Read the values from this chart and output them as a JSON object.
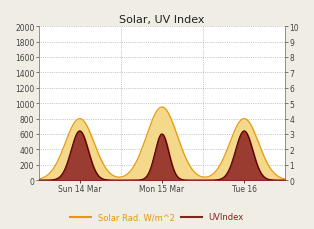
{
  "title": "Solar, UV Index",
  "ylim_left": [
    0,
    2000
  ],
  "ylim_right": [
    0,
    10.0
  ],
  "yticks_left": [
    0,
    200,
    400,
    600,
    800,
    1000,
    1200,
    1400,
    1600,
    1800,
    2000
  ],
  "yticks_right": [
    0.0,
    1.0,
    2.0,
    3.0,
    4.0,
    5.0,
    6.0,
    7.0,
    8.0,
    9.0,
    10.0
  ],
  "xtick_labels": [
    "Sun 14 Mar",
    "Mon 15 Mar",
    "Tue 16"
  ],
  "xtick_positions": [
    12,
    36,
    60
  ],
  "vline_positions": [
    24,
    48
  ],
  "solar_color": "#e8960a",
  "solar_fill": "#f5d98b",
  "uv_color": "#5a0000",
  "uv_fill": "#8b2020",
  "bg_color": "#f0ede4",
  "plot_bg_color": "#ffffff",
  "grid_color": "#999999",
  "title_color": "#222222",
  "legend_solar_color": "#e8960a",
  "legend_uv_color": "#8b2020",
  "xlim": [
    0,
    72
  ],
  "day1_solar_peak": 800,
  "day1_solar_noon": 12,
  "day1_solar_sigma": 4.2,
  "day1_uv_peak": 3.2,
  "day1_uv_noon": 12,
  "day1_uv_sigma": 2.5,
  "day2_solar_peak": 950,
  "day2_solar_noon": 36,
  "day2_solar_sigma": 4.5,
  "day2_uv_peak": 3.0,
  "day2_uv_noon": 36,
  "day2_uv_sigma": 2.0,
  "day3_solar_peak": 800,
  "day3_solar_noon": 60,
  "day3_solar_sigma": 4.2,
  "day3_uv_peak": 3.2,
  "day3_uv_noon": 60,
  "day3_uv_sigma": 2.5
}
